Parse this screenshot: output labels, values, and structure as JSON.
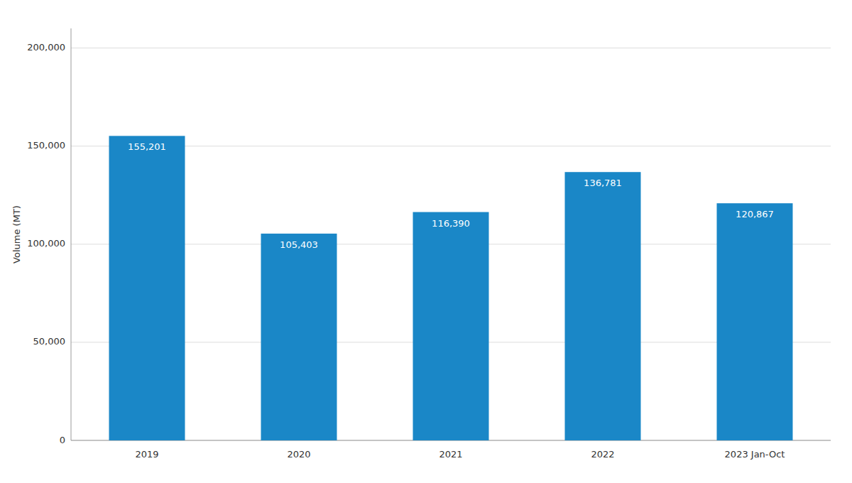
{
  "chart_data": {
    "type": "bar",
    "categories": [
      "2019",
      "2020",
      "2021",
      "2022",
      "2023 Jan-Oct"
    ],
    "values": [
      155201,
      105403,
      116390,
      136781,
      120867
    ],
    "value_labels": [
      "155,201",
      "105,403",
      "116,390",
      "136,781",
      "120,867"
    ],
    "data_labels": true,
    "color": "#1a87c7",
    "ylabel": "Volume (MT)",
    "ylim": [
      0,
      210000
    ],
    "yticks": [
      0,
      {
        "value": 50000,
        "label": "50,000"
      },
      {
        "value": 100000,
        "label": "100,000"
      },
      {
        "value": 150000,
        "label": "150,000"
      },
      {
        "value": 200000,
        "label": "200,000"
      }
    ],
    "grid": true
  }
}
